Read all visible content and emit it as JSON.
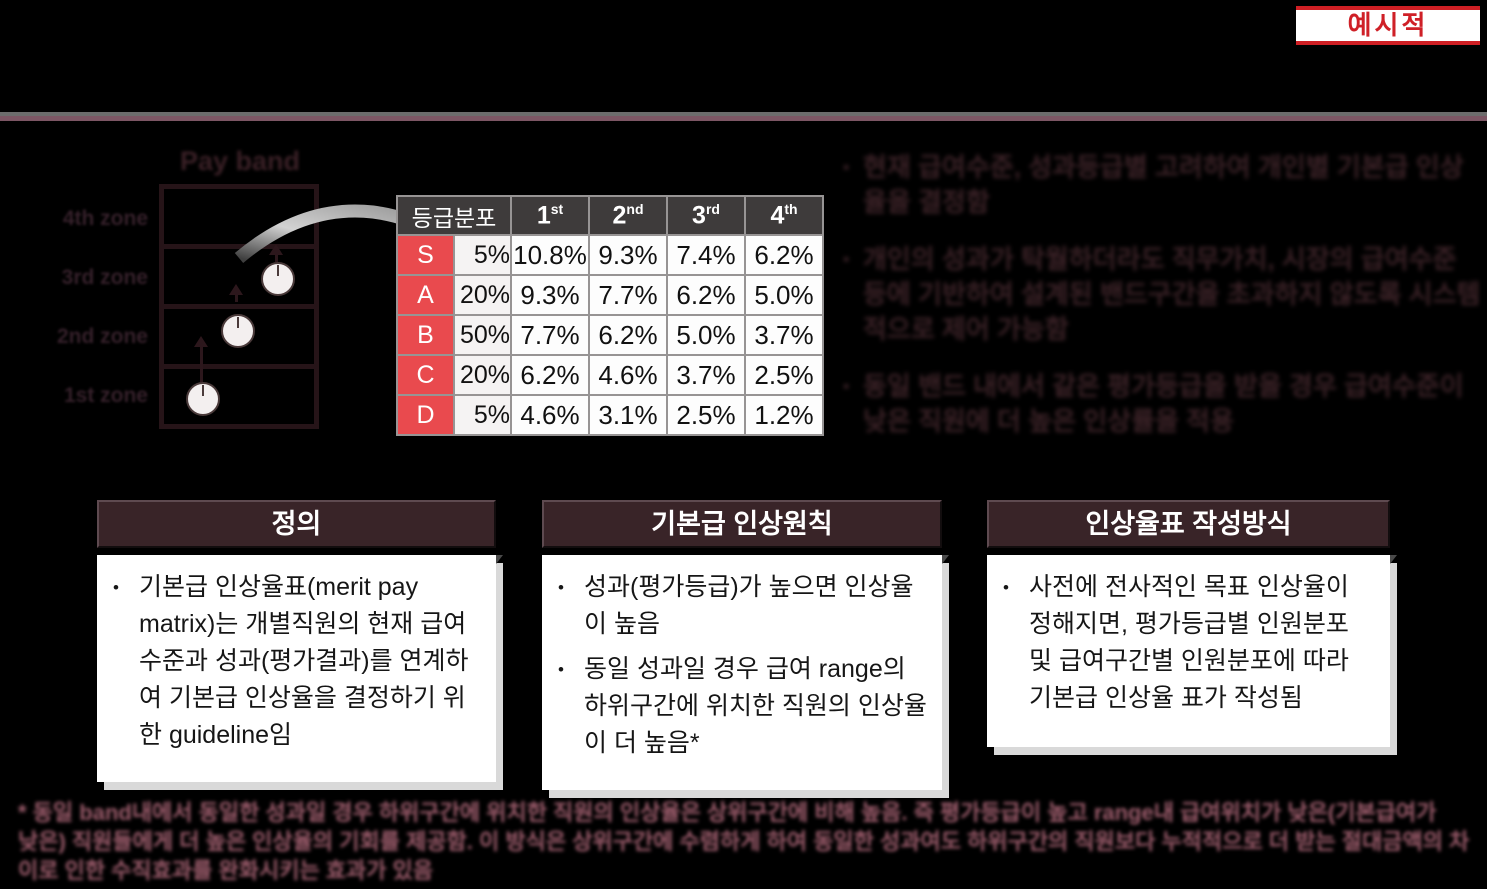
{
  "stamp": {
    "label": "예시적"
  },
  "payband": {
    "title": "Pay band",
    "zones": [
      "4th zone",
      "3rd zone",
      "2nd zone",
      "1st zone"
    ]
  },
  "chart_data": {
    "type": "table",
    "title": "기본급 인상율표 (merit pay matrix)",
    "corner_header": "등급분포",
    "columns": [
      {
        "base": "1",
        "sup": "st"
      },
      {
        "base": "2",
        "sup": "nd"
      },
      {
        "base": "3",
        "sup": "rd"
      },
      {
        "base": "4",
        "sup": "th"
      }
    ],
    "rows": [
      {
        "grade": "S",
        "distribution": "5%",
        "values": [
          "10.8%",
          "9.3%",
          "7.4%",
          "6.2%"
        ]
      },
      {
        "grade": "A",
        "distribution": "20%",
        "values": [
          "9.3%",
          "7.7%",
          "6.2%",
          "5.0%"
        ]
      },
      {
        "grade": "B",
        "distribution": "50%",
        "values": [
          "7.7%",
          "6.2%",
          "5.0%",
          "3.7%"
        ]
      },
      {
        "grade": "C",
        "distribution": "20%",
        "values": [
          "6.2%",
          "4.6%",
          "3.7%",
          "2.5%"
        ]
      },
      {
        "grade": "D",
        "distribution": "5%",
        "values": [
          "4.6%",
          "3.1%",
          "2.5%",
          "1.2%"
        ]
      }
    ]
  },
  "keypoints": {
    "bullets": [
      "현재 급여수준, 성과등급별 고려하여 개인별 기본급 인상율을 결정함",
      "개인의 성과가 탁월하더라도 직무가치, 시장의 급여수준 등에 기반하여 설계된 밴드구간을 초과하지 않도록 시스템적으로 제어 가능함",
      "동일 밴드 내에서 같은 평가등급을 받을 경우 급여수준이 낮은 직원에 더 높은 인상률을 적용"
    ]
  },
  "boxes": [
    {
      "title": "정의",
      "bullets": [
        "기본급 인상율표(merit pay matrix)는 개별직원의 현재 급여수준과 성과(평가결과)를 연계하여 기본급 인상율을 결정하기 위한 guideline임"
      ]
    },
    {
      "title": "기본급 인상원칙",
      "bullets": [
        "성과(평가등급)가 높으면 인상율이 높음",
        "동일 성과일 경우 급여 range의 하위구간에 위치한 직원의 인상율이 더 높음*"
      ]
    },
    {
      "title": "인상율표 작성방식",
      "bullets": [
        "사전에 전사적인 목표 인상율이 정해지면, 평가등급별 인원분포 및 급여구간별 인원분포에 따라 기본급 인상율 표가 작성됨"
      ]
    }
  ],
  "footnote": {
    "lines": [
      "* 동일 band내에서 동일한 성과일 경우 하위구간에 위치한 직원의 인상율은 상위구간에 비해 높음. 즉 평가등급이 높고 range내 급여위치가 낮은(기본급여가",
      "낮은) 직원들에게 더 높은 인상율의 기회를 제공함. 이 방식은 상위구간에 수렴하게 하여 동일한 성과여도 하위구간의 직원보다 누적적으로 더 받는 절대금액의 차",
      "이로 인한 수직효과를 완화시키는 효과가 있음"
    ]
  },
  "colors": {
    "accent_red": "#cf1f24",
    "table_grade_red": "#e94a4e",
    "table_header_gray": "#3e3b3b",
    "box_header_maroon": "#392428",
    "divider_gray": "#6c6c6c",
    "divider_plum": "#7c5664",
    "footnote_plum": "#9f5e6e",
    "background": "#000000"
  }
}
